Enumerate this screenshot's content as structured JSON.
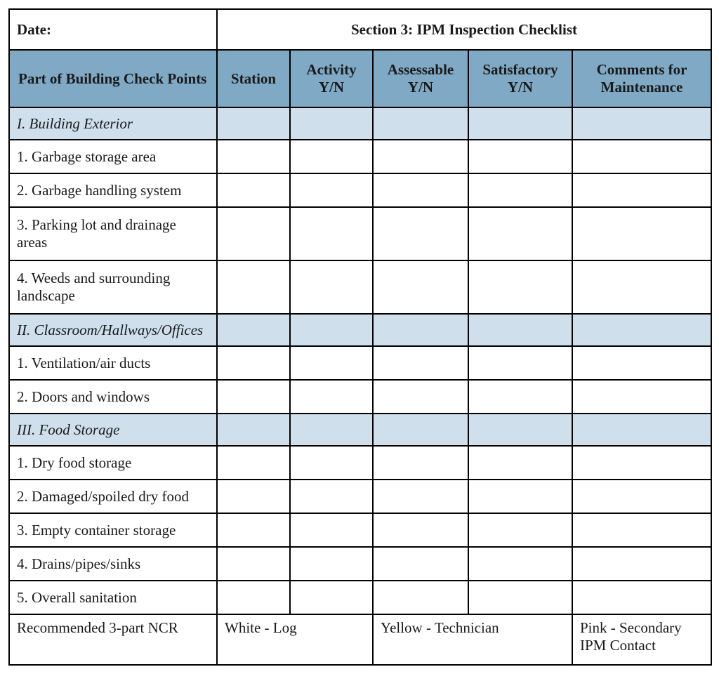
{
  "header": {
    "date_label": "Date:",
    "section_title": "Section 3: IPM Inspection Checklist"
  },
  "columns": {
    "checkpoints": "Part of Building Check Points",
    "station": "Station",
    "activity": "Activity Y/N",
    "assessable": "Assessable Y/N",
    "satisfactory": "Satisfactory Y/N",
    "comments": "Comments for Maintenance"
  },
  "sections": {
    "s1": {
      "title": "I. Building Exterior",
      "rows": {
        "r1": "1. Garbage storage area",
        "r2": "2. Garbage handling system",
        "r3": "3. Parking lot and drainage areas",
        "r4": "4. Weeds and surrounding landscape"
      }
    },
    "s2": {
      "title": "II. Classroom/Hallways/Offices",
      "rows": {
        "r1": "1. Ventilation/air ducts",
        "r2": "2. Doors and windows"
      }
    },
    "s3": {
      "title": "III. Food Storage",
      "rows": {
        "r1": "1. Dry food storage",
        "r2": "2. Damaged/spoiled dry food",
        "r3": "3. Empty container storage",
        "r4": "4. Drains/pipes/sinks",
        "r5": "5. Overall sanitation"
      }
    }
  },
  "footer": {
    "label": "Recommended 3-part NCR",
    "white": "White - Log",
    "yellow": "Yellow - Technician",
    "pink": "Pink - Secondary IPM Contact"
  },
  "style": {
    "header_bg": "#7fa9c4",
    "section_bg": "#cfe0ec",
    "border_color": "#000000",
    "font_family": "Garamond, Georgia, serif",
    "base_fontsize": 21
  }
}
